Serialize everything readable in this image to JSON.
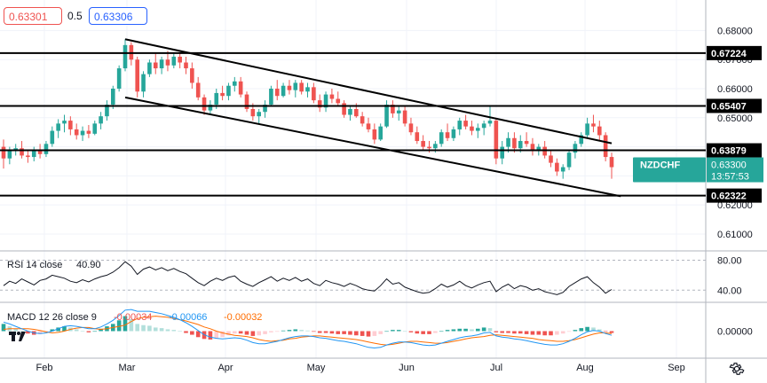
{
  "window": {
    "bid": "0.63301",
    "spread": "0.5",
    "ask": "0.63306"
  },
  "colors": {
    "up": "#26a69a",
    "down": "#ef5350",
    "symbol_tag": "#26a69a",
    "macd_line": "#2196f3",
    "signal_line": "#ff6d00",
    "rsi_line": "#131722",
    "level_line": "#000000",
    "channel_line": "#000000"
  },
  "icons": {
    "settings": "gear-icon",
    "logo": "tradingview-logo-icon"
  },
  "chart_data": [
    {
      "type": "candlestick",
      "symbol": "NZDCHF",
      "countdown": "13:57:53",
      "last_price": "0.63300",
      "x_ticks": [
        "Feb",
        "Mar",
        "Apr",
        "May",
        "Jun",
        "Jul",
        "Aug",
        "Sep"
      ],
      "y_ticks": [
        "0.68000",
        "0.67000",
        "0.66000",
        "0.65000",
        "0.64000",
        "0.63000",
        "0.62000",
        "0.61000"
      ],
      "ylim": [
        0.6045,
        0.6905
      ],
      "horizontal_levels": [
        "0.67224",
        "0.65407",
        "0.63879",
        "0.62322"
      ],
      "channel": {
        "upper": [
          [
            "Mar",
            0.677
          ],
          [
            "Aug 10",
            0.6412
          ]
        ],
        "lower": [
          [
            "Mar",
            0.657
          ],
          [
            "Aug 18",
            0.623
          ]
        ]
      },
      "close_path": [
        0.637,
        0.641,
        0.637,
        0.644,
        0.649,
        0.642,
        0.652,
        0.675,
        0.665,
        0.671,
        0.668,
        0.67,
        0.663,
        0.654,
        0.659,
        0.663,
        0.654,
        0.65,
        0.658,
        0.662,
        0.66,
        0.659,
        0.657,
        0.654,
        0.651,
        0.648,
        0.652,
        0.653,
        0.65,
        0.648,
        0.644,
        0.641,
        0.647,
        0.648,
        0.643,
        0.639,
        0.64,
        0.646,
        0.65,
        0.647,
        0.649,
        0.636,
        0.64,
        0.642,
        0.638,
        0.64,
        0.635,
        0.634,
        0.64,
        0.649,
        0.643,
        0.633
      ],
      "candles": [
        [
          0.64,
          0.6425,
          0.6325,
          0.636
        ],
        [
          0.636,
          0.64,
          0.634,
          0.639
        ],
        [
          0.639,
          0.641,
          0.637,
          0.6395
        ],
        [
          0.6395,
          0.642,
          0.636,
          0.637
        ],
        [
          0.637,
          0.639,
          0.6345,
          0.6365
        ],
        [
          0.6365,
          0.64,
          0.635,
          0.6385
        ],
        [
          0.6385,
          0.641,
          0.636,
          0.6375
        ],
        [
          0.6375,
          0.642,
          0.6365,
          0.641
        ],
        [
          0.641,
          0.647,
          0.64,
          0.6455
        ],
        [
          0.6455,
          0.6495,
          0.643,
          0.648
        ],
        [
          0.648,
          0.651,
          0.645,
          0.649
        ],
        [
          0.649,
          0.6505,
          0.644,
          0.646
        ],
        [
          0.646,
          0.648,
          0.6425,
          0.644
        ],
        [
          0.644,
          0.647,
          0.642,
          0.6455
        ],
        [
          0.6455,
          0.6475,
          0.643,
          0.6445
        ],
        [
          0.6445,
          0.649,
          0.644,
          0.648
        ],
        [
          0.648,
          0.652,
          0.646,
          0.6505
        ],
        [
          0.6505,
          0.656,
          0.649,
          0.6545
        ],
        [
          0.6545,
          0.661,
          0.653,
          0.66
        ],
        [
          0.66,
          0.668,
          0.659,
          0.667
        ],
        [
          0.667,
          0.677,
          0.666,
          0.675
        ],
        [
          0.675,
          0.676,
          0.668,
          0.67
        ],
        [
          0.67,
          0.671,
          0.657,
          0.659
        ],
        [
          0.659,
          0.666,
          0.657,
          0.665
        ],
        [
          0.665,
          0.67,
          0.664,
          0.669
        ],
        [
          0.669,
          0.672,
          0.665,
          0.667
        ],
        [
          0.667,
          0.671,
          0.665,
          0.67
        ],
        [
          0.67,
          0.673,
          0.666,
          0.668
        ],
        [
          0.668,
          0.672,
          0.667,
          0.671
        ],
        [
          0.671,
          0.672,
          0.667,
          0.669
        ],
        [
          0.669,
          0.671,
          0.665,
          0.667
        ],
        [
          0.667,
          0.669,
          0.66,
          0.662
        ],
        [
          0.662,
          0.664,
          0.656,
          0.657
        ],
        [
          0.657,
          0.658,
          0.651,
          0.6525
        ],
        [
          0.6525,
          0.656,
          0.651,
          0.6545
        ],
        [
          0.6545,
          0.66,
          0.653,
          0.6585
        ],
        [
          0.6585,
          0.661,
          0.656,
          0.6575
        ],
        [
          0.6575,
          0.662,
          0.656,
          0.661
        ],
        [
          0.661,
          0.664,
          0.659,
          0.6625
        ],
        [
          0.6625,
          0.664,
          0.657,
          0.658
        ],
        [
          0.658,
          0.659,
          0.652,
          0.653
        ],
        [
          0.653,
          0.655,
          0.649,
          0.6505
        ],
        [
          0.6505,
          0.653,
          0.648,
          0.652
        ],
        [
          0.652,
          0.656,
          0.65,
          0.6545
        ],
        [
          0.6545,
          0.661,
          0.654,
          0.66
        ],
        [
          0.66,
          0.663,
          0.656,
          0.6575
        ],
        [
          0.6575,
          0.662,
          0.657,
          0.661
        ],
        [
          0.661,
          0.663,
          0.658,
          0.6595
        ],
        [
          0.6595,
          0.663,
          0.657,
          0.662
        ],
        [
          0.662,
          0.663,
          0.658,
          0.659
        ],
        [
          0.659,
          0.662,
          0.657,
          0.6605
        ],
        [
          0.6605,
          0.662,
          0.655,
          0.656
        ],
        [
          0.656,
          0.658,
          0.652,
          0.6535
        ],
        [
          0.6535,
          0.659,
          0.652,
          0.658
        ],
        [
          0.658,
          0.66,
          0.655,
          0.6565
        ],
        [
          0.6565,
          0.659,
          0.654,
          0.655
        ],
        [
          0.655,
          0.656,
          0.65,
          0.651
        ],
        [
          0.651,
          0.654,
          0.649,
          0.653
        ],
        [
          0.653,
          0.655,
          0.65,
          0.6505
        ],
        [
          0.6505,
          0.652,
          0.647,
          0.648
        ],
        [
          0.648,
          0.65,
          0.645,
          0.646
        ],
        [
          0.646,
          0.648,
          0.641,
          0.6425
        ],
        [
          0.6425,
          0.648,
          0.642,
          0.647
        ],
        [
          0.647,
          0.656,
          0.6465,
          0.6545
        ],
        [
          0.6545,
          0.656,
          0.65,
          0.6515
        ],
        [
          0.6515,
          0.654,
          0.649,
          0.6525
        ],
        [
          0.6525,
          0.654,
          0.647,
          0.648
        ],
        [
          0.648,
          0.65,
          0.644,
          0.645
        ],
        [
          0.645,
          0.647,
          0.641,
          0.642
        ],
        [
          0.642,
          0.644,
          0.639,
          0.64
        ],
        [
          0.64,
          0.642,
          0.638,
          0.6395
        ],
        [
          0.6395,
          0.642,
          0.638,
          0.641
        ],
        [
          0.641,
          0.646,
          0.64,
          0.645
        ],
        [
          0.645,
          0.648,
          0.642,
          0.643
        ],
        [
          0.643,
          0.647,
          0.642,
          0.646
        ],
        [
          0.646,
          0.65,
          0.644,
          0.649
        ],
        [
          0.649,
          0.651,
          0.646,
          0.647
        ],
        [
          0.647,
          0.649,
          0.644,
          0.6455
        ],
        [
          0.6455,
          0.648,
          0.643,
          0.6465
        ],
        [
          0.6465,
          0.649,
          0.644,
          0.648
        ],
        [
          0.648,
          0.654,
          0.647,
          0.649
        ],
        [
          0.649,
          0.65,
          0.634,
          0.636
        ],
        [
          0.636,
          0.642,
          0.634,
          0.64
        ],
        [
          0.64,
          0.645,
          0.638,
          0.643
        ],
        [
          0.643,
          0.645,
          0.638,
          0.6395
        ],
        [
          0.6395,
          0.644,
          0.638,
          0.642
        ],
        [
          0.642,
          0.645,
          0.64,
          0.641
        ],
        [
          0.641,
          0.643,
          0.637,
          0.6385
        ],
        [
          0.6385,
          0.641,
          0.637,
          0.64
        ],
        [
          0.64,
          0.642,
          0.636,
          0.637
        ],
        [
          0.637,
          0.639,
          0.633,
          0.6345
        ],
        [
          0.6345,
          0.636,
          0.63,
          0.6315
        ],
        [
          0.6315,
          0.634,
          0.629,
          0.633
        ],
        [
          0.633,
          0.639,
          0.632,
          0.638
        ],
        [
          0.638,
          0.642,
          0.636,
          0.641
        ],
        [
          0.641,
          0.645,
          0.64,
          0.644
        ],
        [
          0.644,
          0.65,
          0.643,
          0.648
        ],
        [
          0.648,
          0.651,
          0.645,
          0.647
        ],
        [
          0.647,
          0.649,
          0.642,
          0.644
        ],
        [
          0.644,
          0.645,
          0.635,
          0.6365
        ],
        [
          0.6365,
          0.638,
          0.629,
          0.633
        ]
      ]
    },
    {
      "type": "line",
      "name": "RSI 14 close",
      "value_label": "40.90",
      "y_ticks": [
        "80.00",
        "40.00"
      ],
      "ylim": [
        25,
        90
      ],
      "values": [
        46,
        52,
        49,
        55,
        51,
        47,
        53,
        55,
        60,
        58,
        56,
        52,
        50,
        54,
        51,
        55,
        58,
        60,
        64,
        70,
        78,
        72,
        61,
        68,
        71,
        67,
        70,
        66,
        69,
        65,
        62,
        56,
        50,
        46,
        52,
        56,
        53,
        57,
        59,
        52,
        48,
        45,
        50,
        54,
        58,
        52,
        56,
        53,
        57,
        52,
        55,
        49,
        46,
        53,
        50,
        48,
        45,
        49,
        46,
        42,
        40,
        39,
        46,
        55,
        48,
        50,
        44,
        41,
        38,
        36,
        37,
        42,
        48,
        44,
        47,
        52,
        46,
        43,
        47,
        50,
        52,
        38,
        44,
        48,
        42,
        46,
        44,
        40,
        42,
        38,
        36,
        34,
        37,
        45,
        50,
        55,
        58,
        50,
        44,
        36,
        41
      ]
    },
    {
      "type": "bar",
      "name": "MACD 12 26 close 9",
      "value_labels": [
        "-0.00034",
        "-0.00066",
        "-0.00032"
      ],
      "y_ticks": [
        "0.00000"
      ],
      "ylim": [
        -0.0045,
        0.0045
      ],
      "histogram": [
        0.0012,
        0.0008,
        0.0004,
        0.0,
        -0.0004,
        -0.0006,
        -0.0005,
        -0.0002,
        0.0003,
        0.0006,
        0.0008,
        0.0006,
        0.0003,
        0.0,
        -0.0002,
        0.0,
        0.0004,
        0.0008,
        0.0012,
        0.0018,
        0.0025,
        0.002,
        0.0012,
        0.001,
        0.0009,
        0.0006,
        0.0005,
        0.0003,
        0.0002,
        0.0,
        -0.0003,
        -0.0006,
        -0.001,
        -0.0013,
        -0.0014,
        -0.0012,
        -0.001,
        -0.0007,
        -0.0004,
        -0.0004,
        -0.0006,
        -0.0008,
        -0.0007,
        -0.0005,
        -0.0002,
        -0.0001,
        0.0001,
        0.0002,
        0.0003,
        0.0002,
        0.0001,
        -0.0001,
        -0.0003,
        -0.0003,
        -0.0004,
        -0.0005,
        -0.0005,
        -0.0006,
        -0.0007,
        -0.0008,
        -0.0009,
        -0.0008,
        -0.0005,
        0.0,
        0.0002,
        0.0002,
        0.0,
        -0.0002,
        -0.0004,
        -0.0005,
        -0.0005,
        -0.0003,
        0.0,
        0.0002,
        0.0003,
        0.0004,
        0.0004,
        0.0003,
        0.0004,
        0.0006,
        0.0005,
        -0.0002,
        -0.0003,
        -0.0003,
        -0.0004,
        -0.0004,
        -0.0005,
        -0.0006,
        -0.0006,
        -0.0007,
        -0.0007,
        -0.0006,
        -0.0004,
        -0.0001,
        0.0002,
        0.0005,
        0.0007,
        0.0006,
        0.0003,
        -0.0001,
        -0.0003
      ],
      "macd": [
        0.0015,
        0.0012,
        0.0008,
        0.0004,
        0.0,
        -0.0003,
        -0.0004,
        -0.0003,
        0.0,
        0.0004,
        0.0008,
        0.0009,
        0.0008,
        0.0006,
        0.0004,
        0.0004,
        0.0007,
        0.0012,
        0.0018,
        0.0026,
        0.0035,
        0.0036,
        0.0033,
        0.0033,
        0.0033,
        0.0031,
        0.0029,
        0.0026,
        0.0023,
        0.0019,
        0.0014,
        0.0008,
        0.0001,
        -0.0006,
        -0.001,
        -0.0012,
        -0.0013,
        -0.0012,
        -0.0011,
        -0.0012,
        -0.0015,
        -0.0019,
        -0.0021,
        -0.0021,
        -0.0019,
        -0.0017,
        -0.0014,
        -0.0011,
        -0.0009,
        -0.0008,
        -0.0008,
        -0.0009,
        -0.0011,
        -0.0012,
        -0.0014,
        -0.0016,
        -0.0017,
        -0.0019,
        -0.0021,
        -0.0024,
        -0.0027,
        -0.0028,
        -0.0027,
        -0.0023,
        -0.002,
        -0.0018,
        -0.0018,
        -0.0019,
        -0.0021,
        -0.0023,
        -0.0024,
        -0.0023,
        -0.002,
        -0.0017,
        -0.0014,
        -0.0011,
        -0.0009,
        -0.0008,
        -0.0006,
        -0.0003,
        -0.0002,
        -0.0008,
        -0.001,
        -0.0011,
        -0.0013,
        -0.0014,
        -0.0016,
        -0.0018,
        -0.002,
        -0.0022,
        -0.0023,
        -0.0023,
        -0.0021,
        -0.0017,
        -0.0012,
        -0.0006,
        -0.0001,
        0.0001,
        0.0,
        -0.0004,
        -0.0007
      ]
    }
  ]
}
